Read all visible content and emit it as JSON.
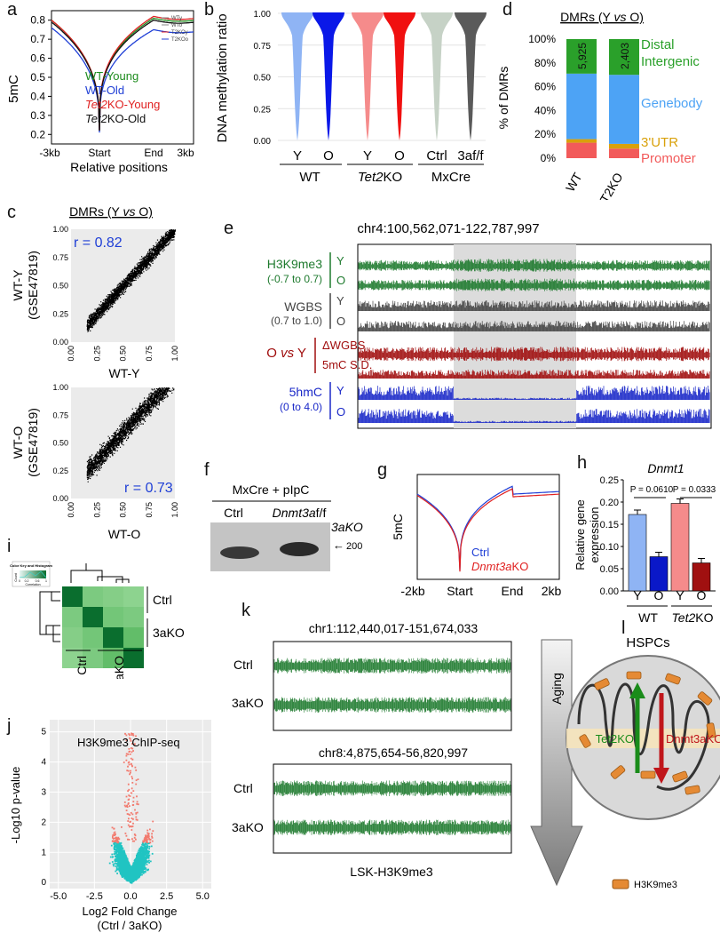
{
  "panels": {
    "a": {
      "label": "a",
      "ylabel": "5mC",
      "xlabel": "Relative positions",
      "xticks": [
        "-3kb",
        "Start",
        "End",
        "3kb"
      ],
      "yticks": [
        "0.8",
        "0.7",
        "0.6",
        "0.5",
        "0.4",
        "0.3",
        "0.2"
      ],
      "small_legend": [
        "WTy",
        "WTo",
        "T2KOy",
        "T2KOo"
      ],
      "legend": [
        {
          "text": "WT-Young",
          "color": "#1e8c1e"
        },
        {
          "text": "WT-Old",
          "color": "#1f3fd6"
        },
        {
          "text": "Tet2KO-Young",
          "color": "#e02020"
        },
        {
          "text": "Tet2KO-Old",
          "color": "#111111"
        }
      ]
    },
    "b": {
      "label": "b",
      "ylabel": "DNA methylation ratio",
      "yticks": [
        "1.00",
        "0.75",
        "0.50",
        "0.25",
        "0.00"
      ],
      "violins": [
        {
          "x": "Y",
          "color": "#8fb4f4"
        },
        {
          "x": "O",
          "color": "#0a18e8"
        },
        {
          "x": "Y",
          "color": "#f58b8b"
        },
        {
          "x": "O",
          "color": "#f01010"
        },
        {
          "x": "Ctrl",
          "color": "#c6d2c6"
        },
        {
          "x": "3af/f",
          "color": "#5a5a5a"
        }
      ],
      "groups": [
        "WT",
        "Tet2KO",
        "MxCre"
      ]
    },
    "c": {
      "label": "c",
      "title": "DMRs (Y vs O)",
      "top": {
        "r": "r = 0.82",
        "ylabel1": "WT-Y",
        "ylabel2": "(GSE47819)",
        "xlabel": "WT-Y"
      },
      "bottom": {
        "r": "r = 0.73",
        "ylabel1": "WT-O",
        "ylabel2": "(GSE47819)",
        "xlabel": "WT-O"
      },
      "yticks": [
        "1.00",
        "0.75",
        "0.50",
        "0.25",
        "0.00"
      ],
      "xticks": [
        "0.00",
        "0.25",
        "0.50",
        "0.75",
        "1.00"
      ]
    },
    "d": {
      "label": "d",
      "title": "DMRs (Y vs O)",
      "ylabel": "% of DMRs",
      "yticks": [
        "100%",
        "80%",
        "60%",
        "40%",
        "20%",
        "0%"
      ],
      "bars": [
        {
          "name": "WT",
          "count": "5,925"
        },
        {
          "name": "T2KO",
          "count": "2,403"
        }
      ],
      "categories": [
        {
          "name": "Distal Intergenic",
          "line1": "Distal",
          "line2": "Intergenic",
          "color": "#2aa02a"
        },
        {
          "name": "Genebody",
          "color": "#4da3f5"
        },
        {
          "name": "3'UTR",
          "color": "#d9a10b"
        },
        {
          "name": "Promoter",
          "color": "#f25a5a"
        }
      ]
    },
    "e": {
      "label": "e",
      "region": "chr4:100,562,071-122,787,997",
      "tracks": [
        {
          "group": "H3K9me3",
          "range": "(-0.7 to 0.7)",
          "rows": [
            "Y",
            "O"
          ],
          "color": "#1e7a2e"
        },
        {
          "group": "WGBS",
          "range": "(0.7 to 1.0)",
          "rows": [
            "Y",
            "O"
          ],
          "color": "#444444"
        },
        {
          "group": "O vs Y",
          "rows": [
            "ΔWGBS",
            "5mC S.D."
          ],
          "color": "#a00d0d"
        },
        {
          "group": "5hmC",
          "range": "(0 to 4.0)",
          "rows": [
            "Y",
            "O"
          ],
          "color": "#1a28c8"
        }
      ]
    },
    "f": {
      "label": "f",
      "title": "MxCre + pIpC",
      "lanes": [
        "Ctrl",
        "Dnmt3af/f"
      ],
      "lane2_italic": "Dnmt3a",
      "lane2_suffix": "f/f",
      "band_label": "3aKO",
      "size": "200 bp"
    },
    "g": {
      "label": "g",
      "ylabel": "5mC",
      "xticks": [
        "-2kb",
        "Start",
        "End",
        "2kb"
      ],
      "legend": [
        {
          "text": "Ctrl",
          "color": "#1f3fd6"
        },
        {
          "text": "Dnmt3aKO",
          "color": "#e02020"
        }
      ]
    },
    "h": {
      "label": "h",
      "title": "Dnmt1",
      "ylabel1": "Relative gene",
      "ylabel2": "expression",
      "yticks": [
        "0.25",
        "0.20",
        "0.15",
        "0.10",
        "0.05",
        "0.00"
      ],
      "p1": "P = 0.0610",
      "p2": "P = 0.0333",
      "xlabels": [
        "Y",
        "O",
        "Y",
        "O"
      ],
      "groups": [
        "WT",
        "Tet2KO"
      ]
    },
    "i": {
      "label": "i",
      "key_title": "Color Key and Histogram",
      "key_axis": "Correlation",
      "key_count": "Count",
      "key_ticks": [
        "0",
        "0.2",
        "0.6",
        "1"
      ],
      "rows": [
        "Ctrl",
        "3aKO"
      ],
      "cols": [
        "Ctrl",
        "3aKO"
      ]
    },
    "j": {
      "label": "j",
      "title": "H3K9me3 ChIP-seq",
      "ylabel": "-Log10 p-value",
      "xlabel1": "Log2 Fold Change",
      "xlabel2": "(Ctrl / 3aKO)",
      "yticks": [
        "5",
        "4",
        "3",
        "2",
        "1",
        "0"
      ],
      "xticks": [
        "-5.0",
        "-2.5",
        "0.0",
        "2.5",
        "5.0"
      ]
    },
    "k": {
      "label": "k",
      "region1": "chr1:112,440,017-151,674,033",
      "region2": "chr8:4,875,654-56,820,997",
      "rows": [
        "Ctrl",
        "3aKO"
      ],
      "caption": "LSK-H3K9me3"
    },
    "l": {
      "label": "l",
      "title": "HSPCs",
      "aging": "Aging",
      "tet2": "Tet2KO",
      "dnmt": "Dnmt3aKO",
      "legend": "H3K9me3"
    }
  },
  "chart_data": [
    {
      "type": "line",
      "title": "",
      "xlabel": "Relative positions",
      "ylabel": "5mC",
      "categories": [
        "-3kb",
        "Start",
        "End",
        "3kb"
      ],
      "ylim": [
        0.15,
        0.85
      ],
      "series": [
        {
          "name": "WT-Young",
          "values": [
            0.8,
            0.22,
            0.81,
            0.8
          ]
        },
        {
          "name": "WT-Old",
          "values": [
            0.76,
            0.21,
            0.75,
            0.74
          ]
        },
        {
          "name": "Tet2KO-Young",
          "values": [
            0.8,
            0.22,
            0.82,
            0.81
          ]
        },
        {
          "name": "Tet2KO-Old",
          "values": [
            0.79,
            0.22,
            0.8,
            0.79
          ]
        }
      ]
    },
    {
      "type": "bar",
      "title": "Dnmt1",
      "ylabel": "Relative gene expression",
      "categories": [
        "WT Y",
        "WT O",
        "Tet2KO Y",
        "Tet2KO O"
      ],
      "values": [
        0.172,
        0.077,
        0.197,
        0.063
      ],
      "ylim": [
        0,
        0.25
      ]
    },
    {
      "type": "bar",
      "title": "DMRs (Y vs O)",
      "ylabel": "% of DMRs",
      "categories": [
        "WT",
        "T2KO"
      ],
      "series": [
        {
          "name": "Promoter",
          "values": [
            13,
            8
          ]
        },
        {
          "name": "3'UTR",
          "values": [
            3,
            4
          ]
        },
        {
          "name": "Genebody",
          "values": [
            55,
            58
          ]
        },
        {
          "name": "Distal Intergenic",
          "values": [
            29,
            30
          ]
        }
      ],
      "ylim": [
        0,
        100
      ]
    },
    {
      "type": "line",
      "ylabel": "5mC",
      "categories": [
        "-2kb",
        "Start",
        "End",
        "2kb"
      ],
      "series": [
        {
          "name": "Ctrl",
          "values": [
            0.8,
            0.22,
            0.86,
            0.82
          ]
        },
        {
          "name": "Dnmt3aKO",
          "values": [
            0.79,
            0.21,
            0.84,
            0.8
          ]
        }
      ]
    }
  ]
}
